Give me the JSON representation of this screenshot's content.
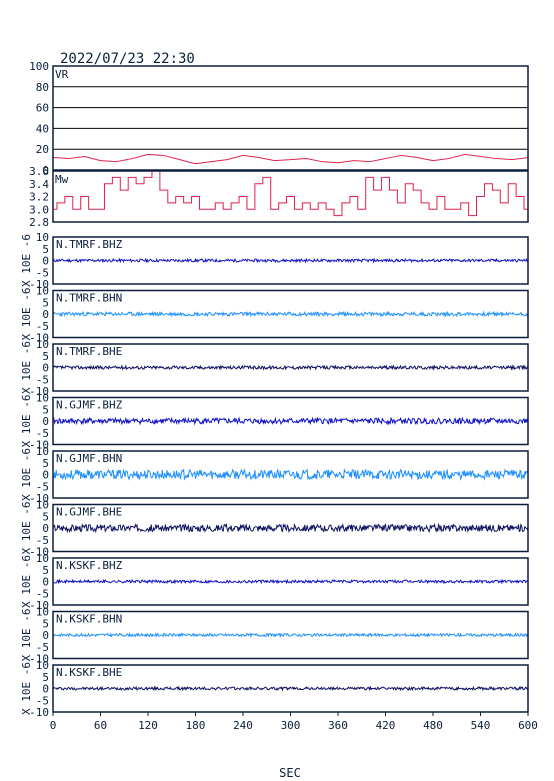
{
  "header": {
    "datetime": "2022/07/23 22:30"
  },
  "chart_data": {
    "type": "line",
    "xlabel": "SEC",
    "xlim": [
      0,
      600
    ],
    "xticks": [
      0,
      60,
      120,
      180,
      240,
      300,
      360,
      420,
      480,
      540,
      600
    ],
    "colors": {
      "vr": "#e0204f",
      "mw": "#e0204f",
      "bhz": "#1010c8",
      "bhn": "#1e90ff",
      "bhe": "#101060",
      "grid": "#000000",
      "axis": "#0a1e3c"
    },
    "vr_panel": {
      "label": "VR",
      "ylim": [
        0,
        100
      ],
      "yticks": [
        0,
        20,
        40,
        60,
        80,
        100
      ],
      "x": [
        0,
        20,
        40,
        60,
        80,
        100,
        120,
        140,
        160,
        180,
        200,
        220,
        240,
        260,
        280,
        300,
        320,
        340,
        360,
        380,
        400,
        420,
        440,
        460,
        480,
        500,
        520,
        540,
        560,
        580,
        600
      ],
      "values": [
        12,
        11,
        13,
        9,
        8,
        11,
        15,
        14,
        10,
        6,
        8,
        10,
        14,
        12,
        9,
        10,
        11,
        8,
        7,
        9,
        8,
        11,
        14,
        12,
        9,
        11,
        15,
        13,
        11,
        10,
        12
      ]
    },
    "mw_panel": {
      "label": "Mw",
      "ylim": [
        2.8,
        3.6
      ],
      "yticks": [
        2.8,
        3.0,
        3.2,
        3.4,
        3.6
      ],
      "x": [
        0,
        10,
        20,
        30,
        40,
        50,
        60,
        70,
        80,
        90,
        100,
        110,
        120,
        130,
        140,
        150,
        160,
        170,
        180,
        190,
        200,
        210,
        220,
        230,
        240,
        250,
        260,
        270,
        280,
        290,
        300,
        310,
        320,
        330,
        340,
        350,
        360,
        370,
        380,
        390,
        400,
        410,
        420,
        430,
        440,
        450,
        460,
        470,
        480,
        490,
        500,
        510,
        520,
        530,
        540,
        550,
        560,
        570,
        580,
        590,
        600
      ],
      "values": [
        3.0,
        3.1,
        3.2,
        3.0,
        3.2,
        3.0,
        3.0,
        3.4,
        3.5,
        3.3,
        3.5,
        3.4,
        3.5,
        3.6,
        3.3,
        3.1,
        3.2,
        3.1,
        3.2,
        3.0,
        3.0,
        3.1,
        3.0,
        3.1,
        3.2,
        3.0,
        3.4,
        3.5,
        3.0,
        3.1,
        3.2,
        3.0,
        3.1,
        3.0,
        3.1,
        3.0,
        2.9,
        3.1,
        3.2,
        3.0,
        3.5,
        3.3,
        3.5,
        3.3,
        3.1,
        3.4,
        3.3,
        3.1,
        3.0,
        3.2,
        3.0,
        3.0,
        3.1,
        2.9,
        3.2,
        3.4,
        3.3,
        3.1,
        3.4,
        3.2,
        3.0
      ]
    },
    "wave_panels": [
      {
        "label": "N.TMRF.BHZ",
        "ylabel": "X 10E -6",
        "ylim": [
          -10,
          10
        ],
        "yticks": [
          -10,
          -5,
          0,
          5,
          10
        ],
        "component": "bhz",
        "amplitude": 0.6,
        "seed": 11
      },
      {
        "label": "N.TMRF.BHN",
        "ylabel": "X 10E -6",
        "ylim": [
          -10,
          10
        ],
        "yticks": [
          -10,
          -5,
          0,
          5,
          10
        ],
        "component": "bhn",
        "amplitude": 0.8,
        "seed": 23
      },
      {
        "label": "N.TMRF.BHE",
        "ylabel": "X 10E -6",
        "ylim": [
          -10,
          10
        ],
        "yticks": [
          -10,
          -5,
          0,
          5,
          10
        ],
        "component": "bhe",
        "amplitude": 0.7,
        "seed": 37
      },
      {
        "label": "N.GJMF.BHZ",
        "ylabel": "X 10E -6",
        "ylim": [
          -10,
          10
        ],
        "yticks": [
          -10,
          -5,
          0,
          5,
          10
        ],
        "component": "bhz",
        "amplitude": 1.2,
        "seed": 41
      },
      {
        "label": "N.GJMF.BHN",
        "ylabel": "X 10E -6",
        "ylim": [
          -10,
          10
        ],
        "yticks": [
          -10,
          -5,
          0,
          5,
          10
        ],
        "component": "bhn",
        "amplitude": 2.0,
        "seed": 53
      },
      {
        "label": "N.GJMF.BHE",
        "ylabel": "X 10E -6",
        "ylim": [
          -10,
          10
        ],
        "yticks": [
          -10,
          -5,
          0,
          5,
          10
        ],
        "component": "bhe",
        "amplitude": 1.5,
        "seed": 67
      },
      {
        "label": "N.KSKF.BHZ",
        "ylabel": "X 10E -6",
        "ylim": [
          -10,
          10
        ],
        "yticks": [
          -10,
          -5,
          0,
          5,
          10
        ],
        "component": "bhz",
        "amplitude": 0.6,
        "seed": 71
      },
      {
        "label": "N.KSKF.BHN",
        "ylabel": "X 10E -6",
        "ylim": [
          -10,
          10
        ],
        "yticks": [
          -10,
          -5,
          0,
          5,
          10
        ],
        "component": "bhn",
        "amplitude": 0.6,
        "seed": 83
      },
      {
        "label": "N.KSKF.BHE",
        "ylabel": "X 10E -6",
        "ylim": [
          -10,
          10
        ],
        "yticks": [
          -10,
          -5,
          0,
          5,
          10
        ],
        "component": "bhe",
        "amplitude": 0.6,
        "seed": 97
      }
    ]
  }
}
